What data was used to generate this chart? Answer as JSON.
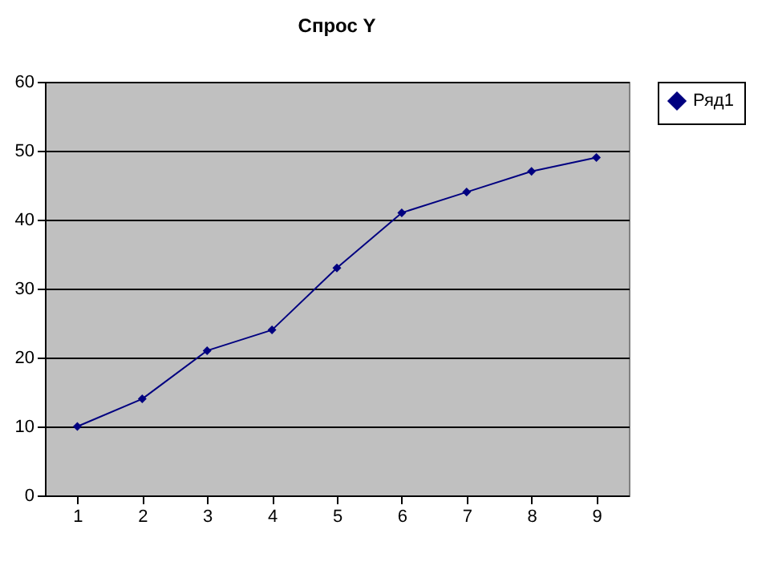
{
  "chart_data": {
    "type": "line",
    "title": "Спрос Y",
    "categories": [
      "1",
      "2",
      "3",
      "4",
      "5",
      "6",
      "7",
      "8",
      "9"
    ],
    "series": [
      {
        "name": "Ряд1",
        "color": "#000080",
        "values": [
          10,
          14,
          21,
          24,
          33,
          41,
          44,
          47,
          49
        ]
      }
    ],
    "ylim": [
      0,
      60
    ],
    "yticks": [
      0,
      10,
      20,
      30,
      40,
      50,
      60
    ],
    "grid": "y",
    "legend": "right",
    "marker": "diamond",
    "line_style": "solid"
  }
}
